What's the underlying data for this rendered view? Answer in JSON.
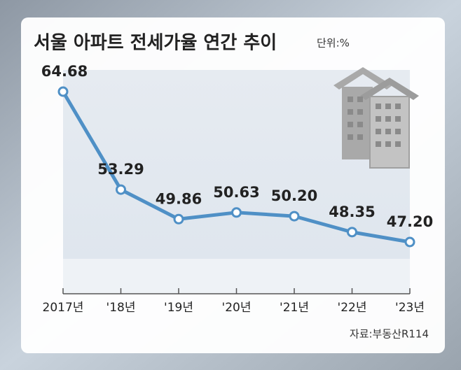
{
  "chart_data": {
    "type": "line",
    "title": "서울 아파트 전세가율 연간 추이",
    "unit": "단위:%",
    "source": "자료:부동산R114",
    "categories": [
      "2017년",
      "'18년",
      "'19년",
      "'20년",
      "'21년",
      "'22년",
      "'23년"
    ],
    "values": [
      64.68,
      53.29,
      49.86,
      50.63,
      50.2,
      48.35,
      47.2
    ],
    "value_labels": [
      "64.68",
      "53.29",
      "49.86",
      "50.63",
      "50.20",
      "48.35",
      "47.20"
    ],
    "color": "#4f90c6"
  }
}
